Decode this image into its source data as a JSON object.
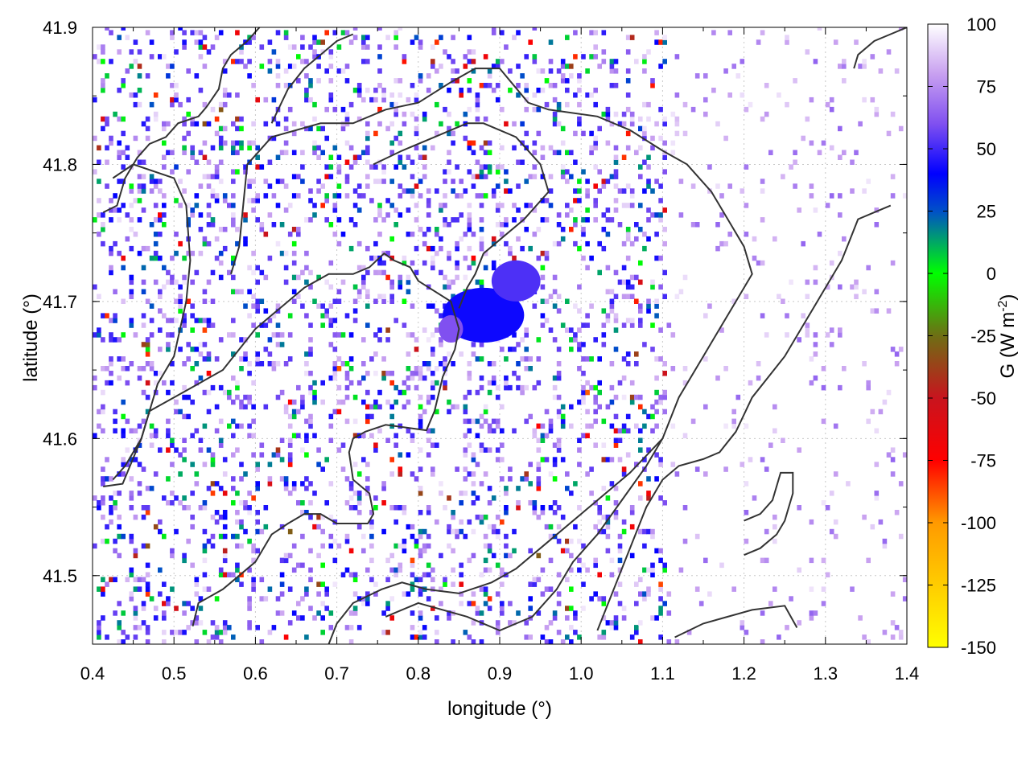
{
  "chart_data": {
    "type": "heatmap",
    "title": "",
    "xlabel": "longitude (°)",
    "ylabel": "latitude (°)",
    "xlim": [
      0.4,
      1.4
    ],
    "ylim": [
      41.45,
      41.9
    ],
    "x_ticks": [
      "0.4",
      "0.5",
      "0.6",
      "0.7",
      "0.8",
      "0.9",
      "1.0",
      "1.1",
      "1.2",
      "1.3",
      "1.4"
    ],
    "y_ticks": [
      "41.5",
      "41.6",
      "41.7",
      "41.8",
      "41.9"
    ],
    "grid": true,
    "colorbar": {
      "label_prefix": "G (W m",
      "label_exponent": "-2",
      "label_suffix": ")",
      "range": [
        -150,
        100
      ],
      "ticks": [
        "100",
        "75",
        "50",
        "25",
        "0",
        "-25",
        "-50",
        "-75",
        "-100",
        "-125",
        "-150"
      ],
      "stops": [
        {
          "value": -150,
          "color": "#ffff00"
        },
        {
          "value": -100,
          "color": "#ff9a00"
        },
        {
          "value": -75,
          "color": "#ff0000"
        },
        {
          "value": -50,
          "color": "#c8141e"
        },
        {
          "value": -25,
          "color": "#6e6e14"
        },
        {
          "value": 0,
          "color": "#00ff00"
        },
        {
          "value": 25,
          "color": "#0050c8"
        },
        {
          "value": 40,
          "color": "#0000ff"
        },
        {
          "value": 60,
          "color": "#8050f0"
        },
        {
          "value": 80,
          "color": "#c8a0f0"
        },
        {
          "value": 100,
          "color": "#ffffff"
        }
      ]
    },
    "hotspots": [
      {
        "lon": 0.88,
        "lat": 41.69,
        "rx": 0.05,
        "ry": 0.02,
        "g": 42
      },
      {
        "lon": 0.92,
        "lat": 41.715,
        "rx": 0.03,
        "ry": 0.015,
        "g": 52
      },
      {
        "lon": 0.84,
        "lat": 41.68,
        "rx": 0.015,
        "ry": 0.01,
        "g": 60
      }
    ],
    "contours": [
      [
        [
          0.413,
          41.565
        ],
        [
          0.437,
          41.567
        ],
        [
          0.46,
          41.6
        ],
        [
          0.47,
          41.62
        ],
        [
          0.5,
          41.63
        ],
        [
          0.53,
          41.64
        ],
        [
          0.56,
          41.65
        ],
        [
          0.58,
          41.665
        ],
        [
          0.6,
          41.68
        ],
        [
          0.62,
          41.69
        ],
        [
          0.64,
          41.7
        ],
        [
          0.66,
          41.71
        ],
        [
          0.69,
          41.72
        ],
        [
          0.72,
          41.72
        ],
        [
          0.74,
          41.725
        ],
        [
          0.758,
          41.735
        ],
        [
          0.77,
          41.73
        ],
        [
          0.79,
          41.725
        ],
        [
          0.8,
          41.715
        ],
        [
          0.84,
          41.7
        ],
        [
          0.85,
          41.68
        ],
        [
          0.845,
          41.665
        ],
        [
          0.83,
          41.645
        ],
        [
          0.82,
          41.62
        ],
        [
          0.81,
          41.606
        ],
        [
          0.76,
          41.61
        ],
        [
          0.735,
          41.605
        ],
        [
          0.72,
          41.6
        ],
        [
          0.715,
          41.59
        ],
        [
          0.72,
          41.57
        ],
        [
          0.74,
          41.56
        ],
        [
          0.745,
          41.545
        ],
        [
          0.738,
          41.538
        ],
        [
          0.7,
          41.538
        ],
        [
          0.68,
          41.545
        ],
        [
          0.66,
          41.545
        ],
        [
          0.64,
          41.538
        ],
        [
          0.62,
          41.53
        ],
        [
          0.6,
          41.51
        ],
        [
          0.58,
          41.5
        ],
        [
          0.56,
          41.49
        ],
        [
          0.53,
          41.48
        ],
        [
          0.523,
          41.463
        ]
      ],
      [
        [
          0.413,
          41.765
        ],
        [
          0.43,
          41.77
        ],
        [
          0.44,
          41.79
        ],
        [
          0.455,
          41.805
        ],
        [
          0.47,
          41.815
        ],
        [
          0.49,
          41.82
        ],
        [
          0.505,
          41.83
        ],
        [
          0.53,
          41.835
        ],
        [
          0.54,
          41.842
        ],
        [
          0.555,
          41.855
        ],
        [
          0.56,
          41.87
        ],
        [
          0.57,
          41.88
        ],
        [
          0.59,
          41.89
        ],
        [
          0.605,
          41.9
        ]
      ],
      [
        [
          0.425,
          41.79
        ],
        [
          0.45,
          41.8
        ],
        [
          0.5,
          41.79
        ],
        [
          0.515,
          41.77
        ],
        [
          0.52,
          41.73
        ],
        [
          0.515,
          41.7
        ],
        [
          0.5,
          41.66
        ],
        [
          0.48,
          41.64
        ],
        [
          0.47,
          41.62
        ],
        [
          0.46,
          41.6
        ],
        [
          0.44,
          41.58
        ],
        [
          0.425,
          41.57
        ]
      ],
      [
        [
          0.57,
          41.72
        ],
        [
          0.58,
          41.74
        ],
        [
          0.585,
          41.77
        ],
        [
          0.59,
          41.8
        ],
        [
          0.62,
          41.82
        ],
        [
          0.68,
          41.83
        ],
        [
          0.72,
          41.83
        ],
        [
          0.76,
          41.84
        ],
        [
          0.8,
          41.845
        ],
        [
          0.84,
          41.86
        ],
        [
          0.87,
          41.87
        ],
        [
          0.9,
          41.87
        ],
        [
          0.935,
          41.845
        ],
        [
          0.96,
          41.84
        ],
        [
          1.02,
          41.835
        ],
        [
          1.06,
          41.825
        ],
        [
          1.1,
          41.81
        ],
        [
          1.13,
          41.8
        ],
        [
          1.16,
          41.78
        ],
        [
          1.18,
          41.76
        ],
        [
          1.2,
          41.74
        ],
        [
          1.21,
          41.72
        ],
        [
          1.19,
          41.7
        ],
        [
          1.17,
          41.68
        ],
        [
          1.15,
          41.66
        ],
        [
          1.12,
          41.63
        ],
        [
          1.1,
          41.6
        ],
        [
          1.06,
          41.575
        ],
        [
          1.0,
          41.545
        ],
        [
          0.96,
          41.525
        ],
        [
          0.92,
          41.505
        ],
        [
          0.89,
          41.495
        ],
        [
          0.85,
          41.487
        ],
        [
          0.81,
          41.49
        ],
        [
          0.78,
          41.495
        ],
        [
          0.755,
          41.49
        ],
        [
          0.72,
          41.48
        ],
        [
          0.7,
          41.465
        ],
        [
          0.69,
          41.45
        ]
      ],
      [
        [
          0.62,
          41.83
        ],
        [
          0.64,
          41.855
        ],
        [
          0.66,
          41.87
        ],
        [
          0.68,
          41.88
        ],
        [
          0.7,
          41.89
        ],
        [
          0.72,
          41.895
        ]
      ],
      [
        [
          0.745,
          41.8
        ],
        [
          0.78,
          41.81
        ],
        [
          0.82,
          41.82
        ],
        [
          0.86,
          41.83
        ],
        [
          0.88,
          41.83
        ],
        [
          0.92,
          41.82
        ],
        [
          0.95,
          41.8
        ],
        [
          0.96,
          41.78
        ],
        [
          0.93,
          41.76
        ],
        [
          0.9,
          41.745
        ],
        [
          0.88,
          41.735
        ],
        [
          0.87,
          41.72
        ],
        [
          0.86,
          41.71
        ],
        [
          0.85,
          41.695
        ]
      ],
      [
        [
          0.76,
          41.47
        ],
        [
          0.8,
          41.48
        ],
        [
          0.86,
          41.47
        ],
        [
          0.9,
          41.46
        ],
        [
          0.94,
          41.47
        ],
        [
          0.97,
          41.49
        ],
        [
          0.99,
          41.51
        ],
        [
          1.02,
          41.53
        ],
        [
          1.05,
          41.555
        ],
        [
          1.08,
          41.58
        ],
        [
          1.1,
          41.6
        ]
      ],
      [
        [
          1.02,
          41.46
        ],
        [
          1.04,
          41.49
        ],
        [
          1.06,
          41.52
        ],
        [
          1.08,
          41.55
        ],
        [
          1.1,
          41.57
        ],
        [
          1.12,
          41.58
        ],
        [
          1.15,
          41.585
        ],
        [
          1.17,
          41.59
        ],
        [
          1.19,
          41.605
        ],
        [
          1.21,
          41.63
        ],
        [
          1.23,
          41.645
        ],
        [
          1.25,
          41.66
        ],
        [
          1.27,
          41.68
        ],
        [
          1.29,
          41.7
        ],
        [
          1.31,
          41.72
        ],
        [
          1.32,
          41.73
        ],
        [
          1.33,
          41.745
        ],
        [
          1.34,
          41.76
        ],
        [
          1.36,
          41.765
        ],
        [
          1.38,
          41.77
        ]
      ],
      [
        [
          1.115,
          41.455
        ],
        [
          1.15,
          41.465
        ],
        [
          1.18,
          41.47
        ],
        [
          1.21,
          41.475
        ],
        [
          1.25,
          41.478
        ],
        [
          1.265,
          41.462
        ]
      ],
      [
        [
          1.335,
          41.87
        ],
        [
          1.34,
          41.88
        ],
        [
          1.36,
          41.89
        ],
        [
          1.38,
          41.895
        ],
        [
          1.4,
          41.9
        ]
      ],
      [
        [
          1.2,
          41.515
        ],
        [
          1.22,
          41.52
        ],
        [
          1.24,
          41.53
        ],
        [
          1.25,
          41.54
        ],
        [
          1.26,
          41.56
        ],
        [
          1.26,
          41.575
        ],
        [
          1.245,
          41.575
        ],
        [
          1.235,
          41.555
        ],
        [
          1.22,
          41.545
        ],
        [
          1.2,
          41.54
        ]
      ]
    ]
  }
}
